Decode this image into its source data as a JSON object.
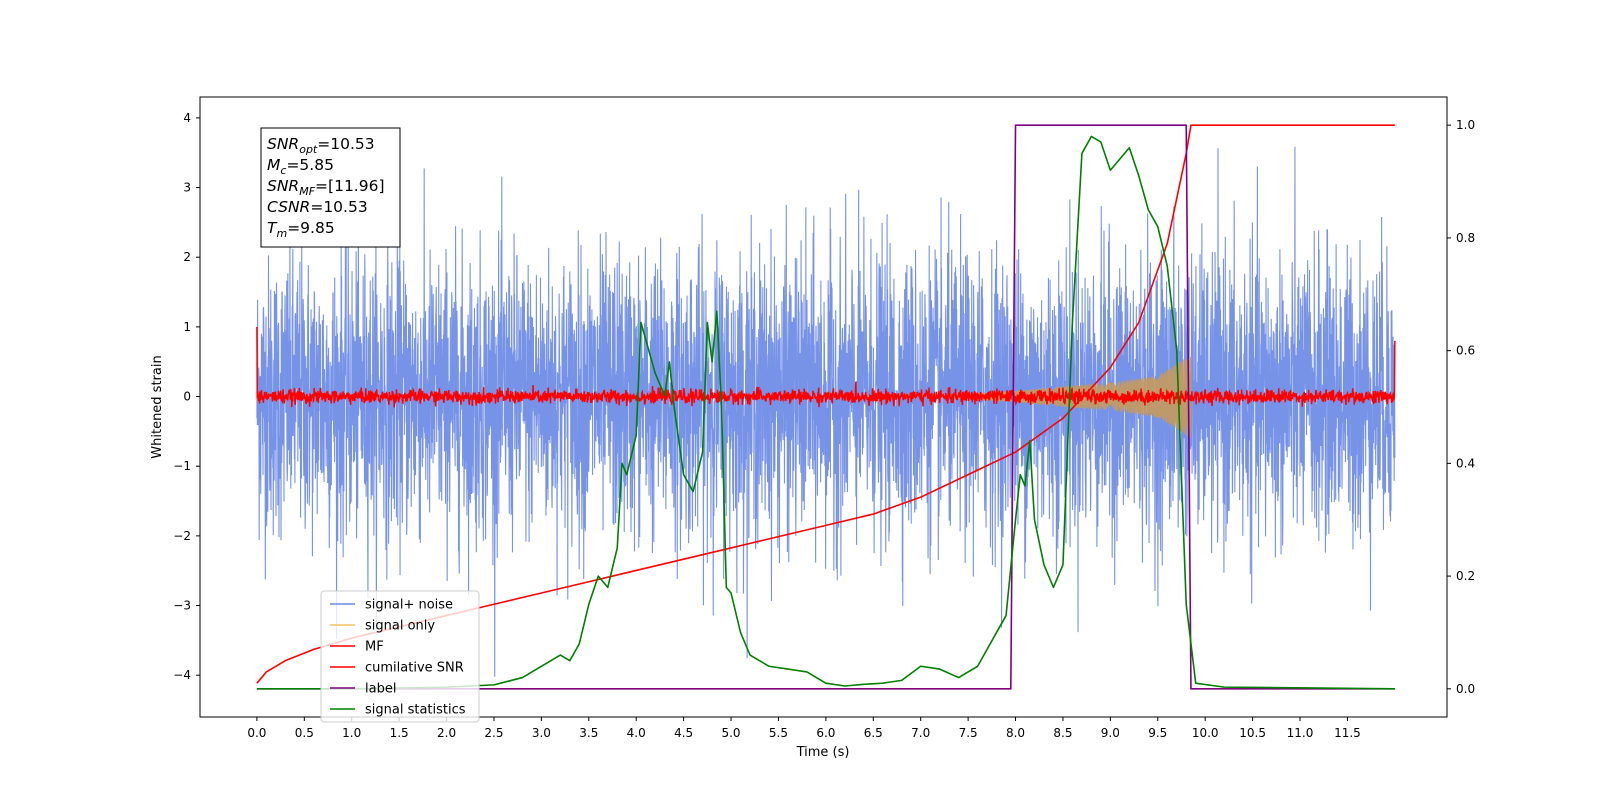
{
  "chart_data": {
    "type": "line",
    "xlabel": "Time (s)",
    "ylabel": "Whitened strain",
    "xlim": [
      -0.6,
      12.55
    ],
    "ylim": [
      -4.6,
      4.3
    ],
    "y2lim": [
      -0.05,
      1.05
    ],
    "xticks": [
      0.0,
      0.5,
      1.0,
      1.5,
      2.0,
      2.5,
      3.0,
      3.5,
      4.0,
      4.5,
      5.0,
      5.5,
      6.0,
      6.5,
      7.0,
      7.5,
      8.0,
      8.5,
      9.0,
      9.5,
      10.0,
      10.5,
      11.0,
      11.5
    ],
    "xtick_labels": [
      "0.0",
      "0.5",
      "1.0",
      "1.5",
      "2.0",
      "2.5",
      "3.0",
      "3.5",
      "4.0",
      "4.5",
      "5.0",
      "5.5",
      "6.0",
      "6.5",
      "7.0",
      "7.5",
      "8.0",
      "8.5",
      "9.0",
      "9.5",
      "10.0",
      "10.5",
      "11.0",
      "11.5"
    ],
    "yticks": [
      4,
      3,
      2,
      1,
      0,
      -1,
      -2,
      -3,
      -4
    ],
    "ytick_labels": [
      "4",
      "3",
      "2",
      "1",
      "0",
      "−1",
      "−2",
      "−3",
      "−4"
    ],
    "y2ticks": [
      1.0,
      0.8,
      0.6,
      0.4,
      0.2,
      0.0
    ],
    "y2tick_labels": [
      "1.0",
      "0.8",
      "0.6",
      "0.4",
      "0.2",
      "0.0"
    ],
    "grid": false,
    "legend_position": "lower-left",
    "annotation": {
      "lines": [
        {
          "base": "SNR",
          "sub": "opt",
          "rest": "=10.53"
        },
        {
          "base": "M",
          "sub": "c",
          "rest": "=5.85"
        },
        {
          "base": "SNR",
          "sub": "MF",
          "rest": "=[11.96]"
        },
        {
          "base": "CSNR",
          "sub": "",
          "rest": "=10.53"
        },
        {
          "base": "T",
          "sub": "m",
          "rest": "=9.85"
        }
      ]
    },
    "series": [
      {
        "name": "signal+ noise",
        "color": "#6b8ae6",
        "axis": "left",
        "style": "noise",
        "x_range": [
          0.0,
          12.0
        ],
        "amplitude_sd": 1.0,
        "extremes": [
          3.9,
          -4.1
        ]
      },
      {
        "name": "signal only",
        "color": "#f5c26b",
        "axis": "left",
        "style": "chirp",
        "x_range": [
          7.3,
          9.85
        ],
        "envelope": [
          [
            7.3,
            0.02
          ],
          [
            8.0,
            0.08
          ],
          [
            8.5,
            0.15
          ],
          [
            9.0,
            0.2
          ],
          [
            9.5,
            0.3
          ],
          [
            9.85,
            0.6
          ]
        ]
      },
      {
        "name": "MF",
        "color": "#ff0000",
        "axis": "left",
        "style": "noise",
        "x_range": [
          0.0,
          12.0
        ],
        "amplitude_sd": 0.05,
        "endpoints": [
          1.0,
          0.8
        ]
      },
      {
        "name": "cumilative SNR",
        "color": "#ff0000",
        "axis": "right",
        "points": [
          [
            0.0,
            0.01
          ],
          [
            0.1,
            0.03
          ],
          [
            0.3,
            0.05
          ],
          [
            0.6,
            0.07
          ],
          [
            1.0,
            0.09
          ],
          [
            1.5,
            0.11
          ],
          [
            2.0,
            0.13
          ],
          [
            2.5,
            0.15
          ],
          [
            3.0,
            0.17
          ],
          [
            3.5,
            0.19
          ],
          [
            4.0,
            0.21
          ],
          [
            4.5,
            0.23
          ],
          [
            5.0,
            0.25
          ],
          [
            5.5,
            0.27
          ],
          [
            6.0,
            0.29
          ],
          [
            6.5,
            0.31
          ],
          [
            7.0,
            0.34
          ],
          [
            7.5,
            0.38
          ],
          [
            8.0,
            0.42
          ],
          [
            8.5,
            0.48
          ],
          [
            9.0,
            0.57
          ],
          [
            9.3,
            0.65
          ],
          [
            9.6,
            0.79
          ],
          [
            9.8,
            0.95
          ],
          [
            9.85,
            1.0
          ],
          [
            12.0,
            1.0
          ]
        ]
      },
      {
        "name": "label",
        "color": "#800080",
        "axis": "right",
        "points": [
          [
            0.0,
            0.0
          ],
          [
            7.95,
            0.0
          ],
          [
            8.0,
            1.0
          ],
          [
            9.8,
            1.0
          ],
          [
            9.85,
            0.0
          ],
          [
            12.0,
            0.0
          ]
        ]
      },
      {
        "name": "signal statistics",
        "color": "#008000",
        "axis": "right",
        "points": [
          [
            0.0,
            0.0
          ],
          [
            1.0,
            0.0
          ],
          [
            2.0,
            0.003
          ],
          [
            2.5,
            0.007
          ],
          [
            2.8,
            0.02
          ],
          [
            3.0,
            0.04
          ],
          [
            3.1,
            0.05
          ],
          [
            3.2,
            0.06
          ],
          [
            3.3,
            0.05
          ],
          [
            3.4,
            0.08
          ],
          [
            3.5,
            0.15
          ],
          [
            3.6,
            0.2
          ],
          [
            3.7,
            0.18
          ],
          [
            3.8,
            0.25
          ],
          [
            3.85,
            0.4
          ],
          [
            3.9,
            0.38
          ],
          [
            4.0,
            0.45
          ],
          [
            4.05,
            0.65
          ],
          [
            4.1,
            0.62
          ],
          [
            4.2,
            0.56
          ],
          [
            4.3,
            0.52
          ],
          [
            4.35,
            0.58
          ],
          [
            4.4,
            0.5
          ],
          [
            4.5,
            0.38
          ],
          [
            4.6,
            0.35
          ],
          [
            4.7,
            0.42
          ],
          [
            4.75,
            0.65
          ],
          [
            4.8,
            0.58
          ],
          [
            4.85,
            0.67
          ],
          [
            4.9,
            0.5
          ],
          [
            4.95,
            0.18
          ],
          [
            5.0,
            0.17
          ],
          [
            5.1,
            0.1
          ],
          [
            5.2,
            0.06
          ],
          [
            5.3,
            0.05
          ],
          [
            5.4,
            0.04
          ],
          [
            5.6,
            0.035
          ],
          [
            5.8,
            0.03
          ],
          [
            6.0,
            0.01
          ],
          [
            6.2,
            0.005
          ],
          [
            6.4,
            0.008
          ],
          [
            6.6,
            0.01
          ],
          [
            6.8,
            0.015
          ],
          [
            7.0,
            0.04
          ],
          [
            7.2,
            0.035
          ],
          [
            7.4,
            0.02
          ],
          [
            7.6,
            0.04
          ],
          [
            7.8,
            0.1
          ],
          [
            7.9,
            0.13
          ],
          [
            8.0,
            0.3
          ],
          [
            8.05,
            0.38
          ],
          [
            8.1,
            0.36
          ],
          [
            8.15,
            0.44
          ],
          [
            8.2,
            0.3
          ],
          [
            8.3,
            0.22
          ],
          [
            8.4,
            0.18
          ],
          [
            8.5,
            0.22
          ],
          [
            8.6,
            0.65
          ],
          [
            8.7,
            0.95
          ],
          [
            8.8,
            0.98
          ],
          [
            8.9,
            0.97
          ],
          [
            9.0,
            0.92
          ],
          [
            9.1,
            0.94
          ],
          [
            9.2,
            0.96
          ],
          [
            9.3,
            0.91
          ],
          [
            9.4,
            0.85
          ],
          [
            9.5,
            0.82
          ],
          [
            9.6,
            0.75
          ],
          [
            9.7,
            0.6
          ],
          [
            9.8,
            0.15
          ],
          [
            9.9,
            0.01
          ],
          [
            10.2,
            0.003
          ],
          [
            12.0,
            0.0
          ]
        ]
      }
    ]
  }
}
